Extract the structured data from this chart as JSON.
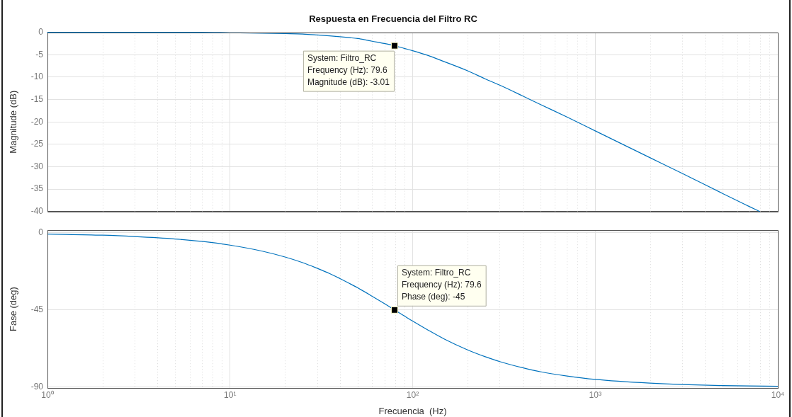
{
  "chart_data": [
    {
      "type": "line",
      "title": "Respuesta en Frecuencia del Filtro RC",
      "ylabel": "Magnitude (dB)",
      "x": [
        1,
        2,
        3,
        5,
        7,
        10,
        15,
        20,
        25,
        30,
        35,
        40,
        45,
        50,
        60,
        70,
        79.6,
        90,
        100,
        120,
        150,
        200,
        250,
        300,
        400,
        500,
        700,
        1000,
        2000,
        3000,
        5000,
        7000,
        7960
      ],
      "series": [
        {
          "color": "#0072bd",
          "values": [
            0,
            0,
            0,
            0,
            0,
            -0.1,
            -0.2,
            -0.3,
            -0.4,
            -0.6,
            -0.8,
            -1.0,
            -1.2,
            -1.4,
            -2.0,
            -2.5,
            -3.01,
            -3.6,
            -4.1,
            -5.1,
            -6.6,
            -8.6,
            -10.4,
            -11.8,
            -14.2,
            -16.1,
            -18.9,
            -22.0,
            -28.0,
            -31.5,
            -36.0,
            -38.9,
            -40
          ]
        }
      ],
      "log": "x",
      "xlim": [
        1,
        10000
      ],
      "xticks": [
        {
          "value": 1,
          "label": null
        },
        {
          "value": 10,
          "label": null
        },
        {
          "value": 100,
          "label": null
        },
        {
          "value": 1000,
          "label": null
        },
        {
          "value": 10000,
          "label": null
        }
      ],
      "ylim": [
        -40,
        0
      ],
      "yticks": [
        0,
        -5,
        -10,
        -15,
        -20,
        -25,
        -30,
        -35,
        -40
      ],
      "grid": true,
      "tick_labels": "y",
      "line_style": "solid",
      "annotations": [
        {
          "text": "System: Filtro_RC\nFrequency (Hz): 79.6\nMagnitude (dB): -3.01",
          "x": 79.6,
          "y": -3.01
        }
      ]
    },
    {
      "type": "line",
      "xlabel": "Frecuencia  (Hz)",
      "ylabel": "Fase (deg)",
      "x": [
        1,
        2,
        3,
        5,
        7,
        10,
        15,
        20,
        25,
        30,
        35,
        40,
        45,
        50,
        60,
        70,
        79.6,
        90,
        100,
        120,
        150,
        200,
        250,
        300,
        400,
        500,
        700,
        1000,
        2000,
        3000,
        5000,
        7000,
        10000
      ],
      "series": [
        {
          "color": "#0072bd",
          "values": [
            -0.7,
            -1.4,
            -2.2,
            -3.6,
            -5.0,
            -7.2,
            -10.7,
            -14.1,
            -17.4,
            -20.7,
            -23.7,
            -26.7,
            -29.5,
            -32.1,
            -37.0,
            -41.3,
            -45,
            -48.5,
            -51.5,
            -56.4,
            -62.1,
            -68.3,
            -72.3,
            -75.1,
            -78.7,
            -81.0,
            -83.5,
            -85.5,
            -87.7,
            -88.5,
            -89.1,
            -89.3,
            -89.5
          ]
        }
      ],
      "log": "x",
      "xlim": [
        1,
        10000
      ],
      "xticks": [
        {
          "value": 1,
          "label": "10⁰"
        },
        {
          "value": 10,
          "label": "10¹"
        },
        {
          "value": 100,
          "label": "10²"
        },
        {
          "value": 1000,
          "label": "10³"
        },
        {
          "value": 10000,
          "label": "10⁴"
        }
      ],
      "ylim": [
        -90.5,
        1.5
      ],
      "yticks": [
        0,
        -45,
        -90
      ],
      "grid": true,
      "line_style": "solid",
      "annotations": [
        {
          "text": "System: Filtro_RC\nFrequency (Hz): 79.6\nPhase (deg): -45",
          "x": 79.6,
          "y": -45
        }
      ]
    }
  ]
}
